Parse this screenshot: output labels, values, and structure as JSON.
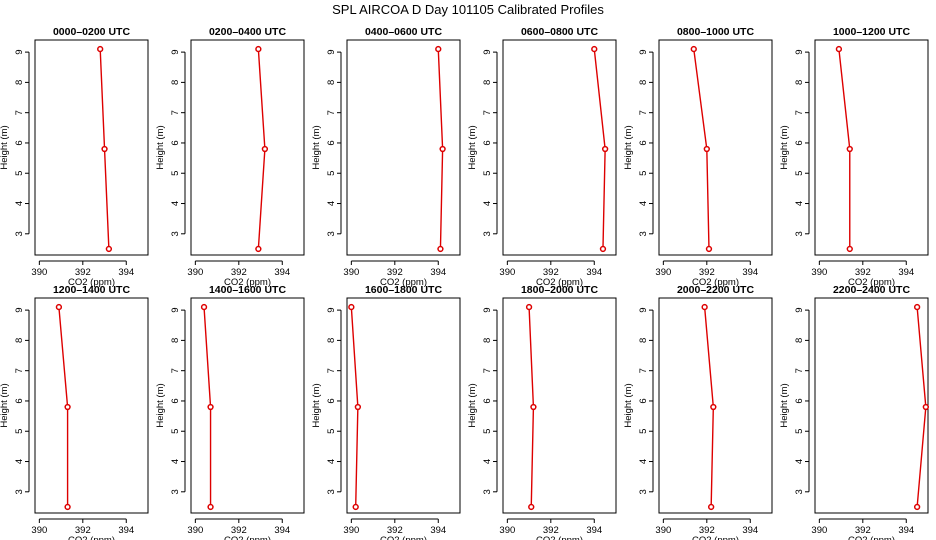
{
  "main_title": "SPL AIRCOA D  Day 101105  Calibrated Profiles",
  "chart_data": [
    {
      "type": "line",
      "title": "0000–0200 UTC",
      "xlabel": "CO2 (ppm)",
      "ylabel": "Height (m)",
      "xticks": [
        390,
        392,
        394
      ],
      "yticks": [
        3,
        4,
        5,
        6,
        7,
        8,
        9
      ],
      "xlim": [
        389.8,
        395.0
      ],
      "ylim": [
        2.3,
        9.4
      ],
      "series": [
        {
          "x": [
            392.8,
            393.0,
            393.2
          ],
          "y": [
            9.1,
            5.8,
            2.5
          ]
        }
      ]
    },
    {
      "type": "line",
      "title": "0200–0400 UTC",
      "xlabel": "CO2 (ppm)",
      "ylabel": "Height (m)",
      "xticks": [
        390,
        392,
        394
      ],
      "yticks": [
        3,
        4,
        5,
        6,
        7,
        8,
        9
      ],
      "xlim": [
        389.8,
        395.0
      ],
      "ylim": [
        2.3,
        9.4
      ],
      "series": [
        {
          "x": [
            392.9,
            393.2,
            392.9
          ],
          "y": [
            9.1,
            5.8,
            2.5
          ]
        }
      ]
    },
    {
      "type": "line",
      "title": "0400–0600 UTC",
      "xlabel": "CO2 (ppm)",
      "ylabel": "Height (m)",
      "xticks": [
        390,
        392,
        394
      ],
      "yticks": [
        3,
        4,
        5,
        6,
        7,
        8,
        9
      ],
      "xlim": [
        389.8,
        395.0
      ],
      "ylim": [
        2.3,
        9.4
      ],
      "series": [
        {
          "x": [
            394.0,
            394.2,
            394.1
          ],
          "y": [
            9.1,
            5.8,
            2.5
          ]
        }
      ]
    },
    {
      "type": "line",
      "title": "0600–0800 UTC",
      "xlabel": "CO2 (ppm)",
      "ylabel": "Height (m)",
      "xticks": [
        390,
        392,
        394
      ],
      "yticks": [
        3,
        4,
        5,
        6,
        7,
        8,
        9
      ],
      "xlim": [
        389.8,
        395.0
      ],
      "ylim": [
        2.3,
        9.4
      ],
      "series": [
        {
          "x": [
            394.0,
            394.5,
            394.4
          ],
          "y": [
            9.1,
            5.8,
            2.5
          ]
        }
      ]
    },
    {
      "type": "line",
      "title": "0800–1000 UTC",
      "xlabel": "CO2 (ppm)",
      "ylabel": "Height (m)",
      "xticks": [
        390,
        392,
        394
      ],
      "yticks": [
        3,
        4,
        5,
        6,
        7,
        8,
        9
      ],
      "xlim": [
        389.8,
        395.0
      ],
      "ylim": [
        2.3,
        9.4
      ],
      "series": [
        {
          "x": [
            391.4,
            392.0,
            392.1
          ],
          "y": [
            9.1,
            5.8,
            2.5
          ]
        }
      ]
    },
    {
      "type": "line",
      "title": "1000–1200 UTC",
      "xlabel": "CO2 (ppm)",
      "ylabel": "Height (m)",
      "xticks": [
        390,
        392,
        394
      ],
      "yticks": [
        3,
        4,
        5,
        6,
        7,
        8,
        9
      ],
      "xlim": [
        389.8,
        395.0
      ],
      "ylim": [
        2.3,
        9.4
      ],
      "series": [
        {
          "x": [
            390.9,
            391.4,
            391.4
          ],
          "y": [
            9.1,
            5.8,
            2.5
          ]
        }
      ]
    },
    {
      "type": "line",
      "title": "1200–1400 UTC",
      "xlabel": "CO2 (ppm)",
      "ylabel": "Height (m)",
      "xticks": [
        390,
        392,
        394
      ],
      "yticks": [
        3,
        4,
        5,
        6,
        7,
        8,
        9
      ],
      "xlim": [
        389.8,
        395.0
      ],
      "ylim": [
        2.3,
        9.4
      ],
      "series": [
        {
          "x": [
            390.9,
            391.3,
            391.3
          ],
          "y": [
            9.1,
            5.8,
            2.5
          ]
        }
      ]
    },
    {
      "type": "line",
      "title": "1400–1600 UTC",
      "xlabel": "CO2 (ppm)",
      "ylabel": "Height (m)",
      "xticks": [
        390,
        392,
        394
      ],
      "yticks": [
        3,
        4,
        5,
        6,
        7,
        8,
        9
      ],
      "xlim": [
        389.8,
        395.0
      ],
      "ylim": [
        2.3,
        9.4
      ],
      "series": [
        {
          "x": [
            390.4,
            390.7,
            390.7
          ],
          "y": [
            9.1,
            5.8,
            2.5
          ]
        }
      ]
    },
    {
      "type": "line",
      "title": "1600–1800 UTC",
      "xlabel": "CO2 (ppm)",
      "ylabel": "Height (m)",
      "xticks": [
        390,
        392,
        394
      ],
      "yticks": [
        3,
        4,
        5,
        6,
        7,
        8,
        9
      ],
      "xlim": [
        389.8,
        395.0
      ],
      "ylim": [
        2.3,
        9.4
      ],
      "series": [
        {
          "x": [
            390.0,
            390.3,
            390.2
          ],
          "y": [
            9.1,
            5.8,
            2.5
          ]
        }
      ]
    },
    {
      "type": "line",
      "title": "1800–2000 UTC",
      "xlabel": "CO2 (ppm)",
      "ylabel": "Height (m)",
      "xticks": [
        390,
        392,
        394
      ],
      "yticks": [
        3,
        4,
        5,
        6,
        7,
        8,
        9
      ],
      "xlim": [
        389.8,
        395.0
      ],
      "ylim": [
        2.3,
        9.4
      ],
      "series": [
        {
          "x": [
            391.0,
            391.2,
            391.1
          ],
          "y": [
            9.1,
            5.8,
            2.5
          ]
        }
      ]
    },
    {
      "type": "line",
      "title": "2000–2200 UTC",
      "xlabel": "CO2 (ppm)",
      "ylabel": "Height (m)",
      "xticks": [
        390,
        392,
        394
      ],
      "yticks": [
        3,
        4,
        5,
        6,
        7,
        8,
        9
      ],
      "xlim": [
        389.8,
        395.0
      ],
      "ylim": [
        2.3,
        9.4
      ],
      "series": [
        {
          "x": [
            391.9,
            392.3,
            392.2
          ],
          "y": [
            9.1,
            5.8,
            2.5
          ]
        }
      ]
    },
    {
      "type": "line",
      "title": "2200–2400 UTC",
      "xlabel": "CO2 (ppm)",
      "ylabel": "Height (m)",
      "xticks": [
        390,
        392,
        394
      ],
      "yticks": [
        3,
        4,
        5,
        6,
        7,
        8,
        9
      ],
      "xlim": [
        389.8,
        395.0
      ],
      "ylim": [
        2.3,
        9.4
      ],
      "series": [
        {
          "x": [
            394.5,
            394.9,
            394.5
          ],
          "y": [
            9.1,
            5.8,
            2.5
          ]
        }
      ]
    }
  ],
  "colors": {
    "series": "#dd0000"
  }
}
